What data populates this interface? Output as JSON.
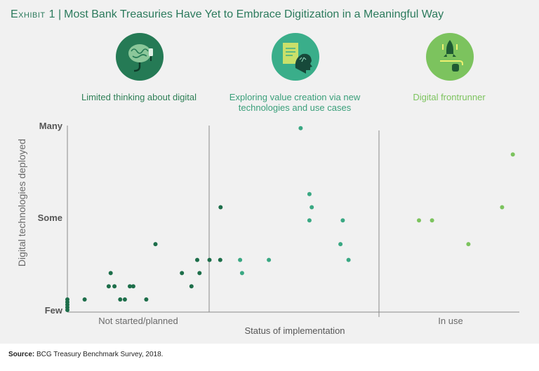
{
  "header": {
    "exhibit_label": "Exhibit 1",
    "separator": "|",
    "title": "Most Bank Treasuries Have Yet to Embrace Digitization in a Meaningful Way"
  },
  "categories": [
    {
      "label": "Limited thinking about digital",
      "icon": "brain-circuit-icon",
      "color": "#257a55"
    },
    {
      "label": "Exploring value creation via new technologies and use cases",
      "icon": "head-document-icon",
      "color": "#3aae8a"
    },
    {
      "label": "Digital frontrunner",
      "icon": "rocket-launch-icon",
      "color": "#7cc35e"
    }
  ],
  "chart_data": {
    "type": "scatter",
    "xlabel": "Status of implementation",
    "ylabel": "Digital technologies deployed",
    "y_ticks": [
      "Few",
      "Some",
      "Many"
    ],
    "x_groups": [
      "Not started/planned",
      "",
      "In use"
    ],
    "ylim": [
      0,
      7
    ],
    "series": [
      {
        "color": "#1d6e4a",
        "points": [
          [
            0.0,
            0.0
          ],
          [
            0.0,
            0.1
          ],
          [
            0.0,
            0.2
          ],
          [
            0.0,
            0.3
          ],
          [
            0.0,
            0.4
          ],
          [
            4.5,
            0.4
          ],
          [
            10.8,
            0.9
          ],
          [
            11.3,
            1.4
          ],
          [
            12.3,
            0.9
          ],
          [
            13.8,
            0.4
          ],
          [
            15.0,
            0.4
          ],
          [
            16.3,
            0.9
          ],
          [
            17.2,
            0.9
          ],
          [
            20.6,
            0.4
          ],
          [
            23.0,
            2.5
          ],
          [
            29.9,
            1.4
          ],
          [
            32.4,
            0.9
          ],
          [
            33.9,
            1.9
          ],
          [
            34.5,
            1.4
          ],
          [
            37.1,
            1.9
          ],
          [
            39.9,
            1.9
          ],
          [
            40.0,
            3.9
          ]
        ]
      },
      {
        "color": "#3aa883",
        "points": [
          [
            45.1,
            1.9
          ],
          [
            45.6,
            1.4
          ],
          [
            52.6,
            1.9
          ],
          [
            60.9,
            6.9
          ],
          [
            63.2,
            4.4
          ],
          [
            63.8,
            3.9
          ],
          [
            63.2,
            3.4
          ],
          [
            71.3,
            2.5
          ],
          [
            71.9,
            3.4
          ],
          [
            73.4,
            1.9
          ]
        ]
      },
      {
        "color": "#7cc35e",
        "points": [
          [
            91.8,
            3.4
          ],
          [
            95.2,
            3.4
          ],
          [
            104.7,
            2.5
          ],
          [
            113.5,
            3.9
          ],
          [
            116.3,
            5.9
          ]
        ]
      }
    ]
  },
  "footer": {
    "source_label": "Source:",
    "source_text": "BCG Treasury Benchmark Survey, 2018."
  }
}
